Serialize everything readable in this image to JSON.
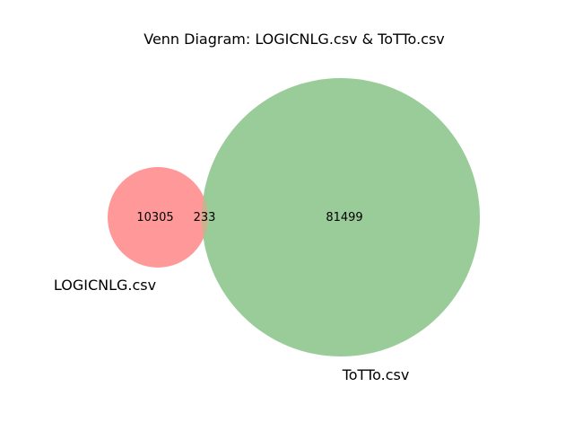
{
  "title": "Venn Diagram: LOGICNLG.csv & ToTTo.csv",
  "sets": [
    {
      "name": "LOGICNLG.csv",
      "color": "#ff9999",
      "only_count": "10305"
    },
    {
      "name": "ToTTo.csv",
      "color": "#99cc99",
      "only_count": "81499"
    }
  ],
  "intersection": {
    "count": "233",
    "color": "#cbb28c"
  },
  "colors": {
    "edge": "none",
    "background": "#ffffff"
  }
}
